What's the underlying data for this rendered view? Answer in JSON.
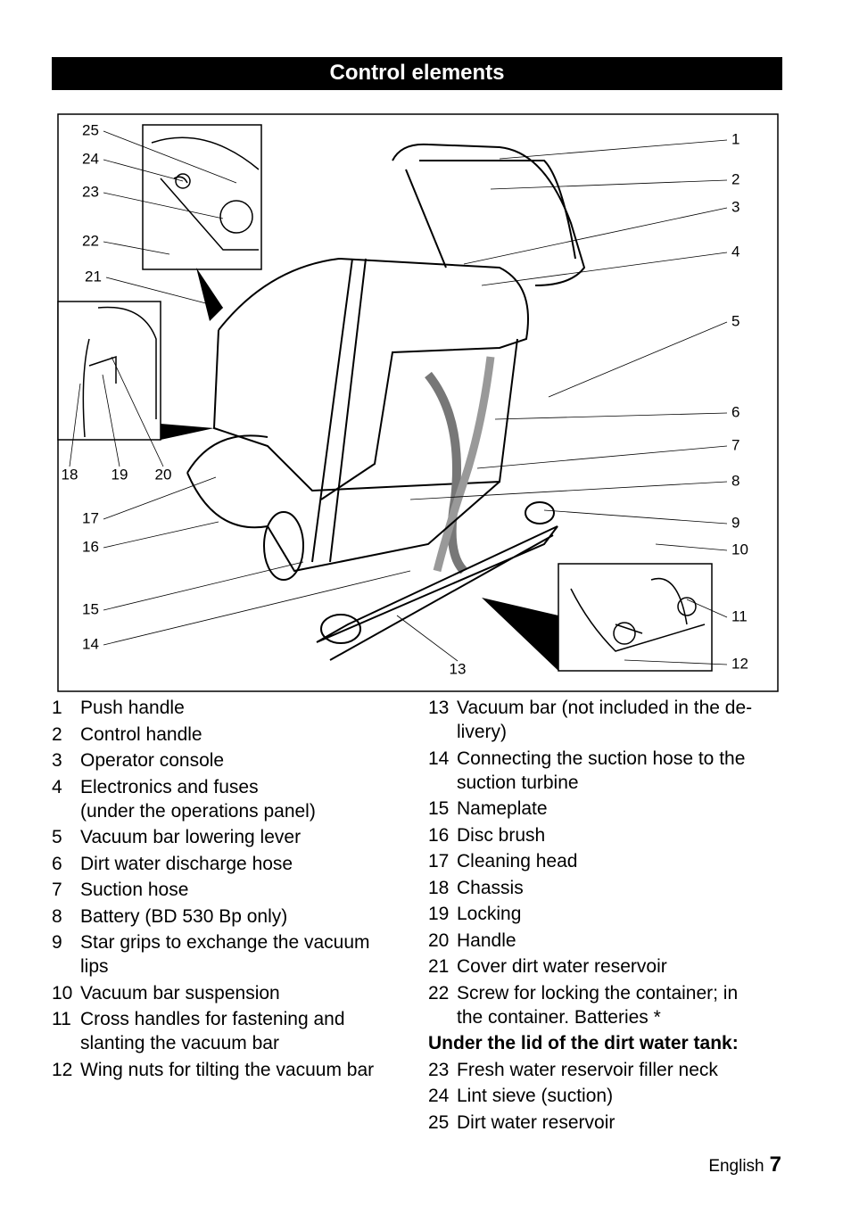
{
  "header": {
    "title": "Control elements"
  },
  "figure": {
    "callouts": [
      "1",
      "2",
      "3",
      "4",
      "5",
      "6",
      "7",
      "8",
      "9",
      "10",
      "11",
      "12",
      "13",
      "14",
      "15",
      "16",
      "17",
      "18",
      "19",
      "20",
      "21",
      "22",
      "23",
      "24",
      "25"
    ]
  },
  "legend_left": [
    {
      "number": "1",
      "lines": [
        "Push handle"
      ]
    },
    {
      "number": "2",
      "lines": [
        "Control handle"
      ]
    },
    {
      "number": "3",
      "lines": [
        "Operator console"
      ]
    },
    {
      "number": "4",
      "lines": [
        "Electronics and fuses",
        "(under the operations panel)"
      ]
    },
    {
      "number": "5",
      "lines": [
        "Vacuum bar lowering lever"
      ]
    },
    {
      "number": "6",
      "lines": [
        "Dirt water discharge hose"
      ]
    },
    {
      "number": "7",
      "lines": [
        "Suction  hose"
      ]
    },
    {
      "number": "8",
      "lines": [
        "Battery (BD 530 Bp only)"
      ]
    },
    {
      "number": "9",
      "lines": [
        "Star grips to exchange the vacuum",
        "lips"
      ]
    },
    {
      "number": "10",
      "lines": [
        "Vacuum bar suspension"
      ]
    },
    {
      "number": "11",
      "lines": [
        "Cross handles for fastening and",
        "slanting the vacuum bar"
      ]
    },
    {
      "number": "12",
      "lines": [
        "Wing nuts for tilting the vacuum bar"
      ]
    }
  ],
  "legend_right": [
    {
      "number": "13",
      "lines": [
        "Vacuum bar (not included in the de-",
        "livery)"
      ]
    },
    {
      "number": "14",
      "lines": [
        "Connecting the suction hose to the",
        "suction turbine"
      ]
    },
    {
      "number": "15",
      "lines": [
        "Nameplate"
      ]
    },
    {
      "number": "16",
      "lines": [
        "Disc brush"
      ]
    },
    {
      "number": "17",
      "lines": [
        "Cleaning head"
      ]
    },
    {
      "number": "18",
      "lines": [
        "Chassis"
      ]
    },
    {
      "number": "19",
      "lines": [
        "Locking"
      ]
    },
    {
      "number": "20",
      "lines": [
        "Handle"
      ]
    },
    {
      "number": "21",
      "lines": [
        "Cover dirt water reservoir"
      ]
    },
    {
      "number": "22",
      "lines": [
        "Screw for locking the container; in",
        "the container. Batteries *"
      ]
    },
    {
      "heading": "Under the lid of the dirt water tank:"
    },
    {
      "number": "23",
      "lines": [
        "Fresh water reservoir filler neck"
      ]
    },
    {
      "number": "24",
      "lines": [
        "Lint sieve (suction)"
      ]
    },
    {
      "number": "25",
      "lines": [
        "Dirt water reservoir"
      ]
    }
  ],
  "footer": {
    "language": "English",
    "page": "7"
  }
}
